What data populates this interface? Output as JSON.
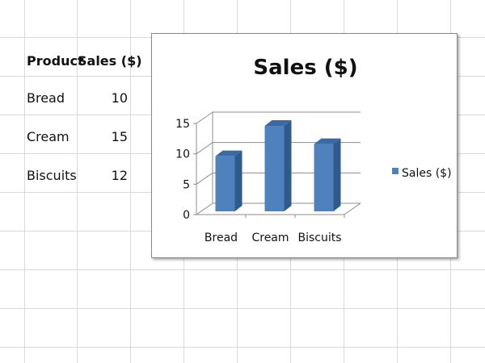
{
  "table": {
    "header": {
      "product": "Product",
      "sales": "Sales ($)"
    },
    "rows": [
      {
        "product": "Bread",
        "sales": "10"
      },
      {
        "product": "Cream",
        "sales": "15"
      },
      {
        "product": "Biscuits",
        "sales": "12"
      }
    ]
  },
  "chart_data": {
    "type": "bar",
    "style": "3d-column",
    "title": "Sales ($)",
    "categories": [
      "Bread",
      "Cream",
      "Biscuits"
    ],
    "series": [
      {
        "name": "Sales ($)",
        "values": [
          10,
          15,
          12
        ]
      }
    ],
    "ylim": [
      0,
      15
    ],
    "yticks": [
      "0",
      "5",
      "10",
      "15"
    ],
    "grid": true,
    "legend": "right",
    "colors": {
      "bar_front": "#4f81bd",
      "bar_side": "#2f5a8f",
      "bar_top": "#3a6aa6",
      "grid": "#8c8c8c"
    }
  }
}
